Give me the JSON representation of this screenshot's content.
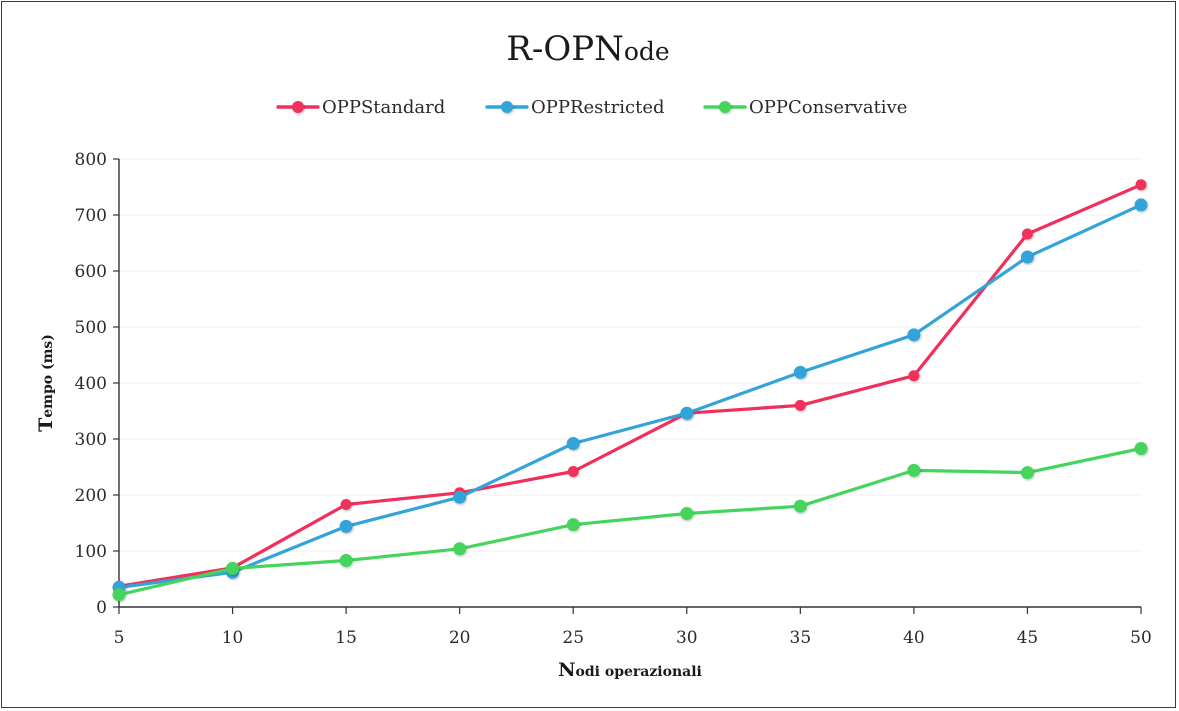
{
  "chart_data": {
    "type": "line",
    "title": "R-OPNode",
    "title_main": "R-OPN",
    "title_smallcaps": "ode",
    "xlabel": "Nodi operazionali",
    "xlabel_first": "N",
    "xlabel_rest": "odi operazionali",
    "ylabel": "Tempo (ms)",
    "ylabel_first": "T",
    "ylabel_rest": "empo (ms)",
    "x": [
      5,
      10,
      15,
      20,
      25,
      30,
      35,
      40,
      45,
      50
    ],
    "x_tick_labels": [
      "5",
      "10",
      "15",
      "20",
      "25",
      "30",
      "35",
      "40",
      "45",
      "50"
    ],
    "ylim": [
      0,
      800
    ],
    "y_ticks": [
      0,
      100,
      200,
      300,
      400,
      500,
      600,
      700,
      800
    ],
    "y_tick_labels": [
      "0",
      "100",
      "200",
      "300",
      "400",
      "500",
      "600",
      "700",
      "800"
    ],
    "grid": true,
    "legend_position": "top-center",
    "series": [
      {
        "name": "OPPStandard",
        "color": "#f0305a",
        "values": [
          37,
          70,
          183,
          204,
          242,
          346,
          360,
          413,
          666,
          754
        ]
      },
      {
        "name": "OPPRestricted",
        "color": "#33a4d9",
        "values": [
          35,
          62,
          144,
          196,
          292,
          346,
          419,
          486,
          625,
          718
        ]
      },
      {
        "name": "OPPConservative",
        "color": "#45d45c",
        "values": [
          22,
          69,
          83,
          104,
          147,
          167,
          180,
          244,
          240,
          283
        ]
      }
    ]
  }
}
